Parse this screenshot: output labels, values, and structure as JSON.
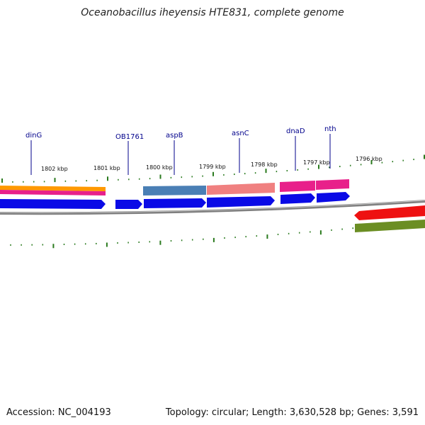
{
  "title": "Oceanobacillus iheyensis HTE831, complete genome",
  "footer": {
    "accession": "Accession: NC_004193",
    "summary": "Topology: circular; Length: 3,630,528 bp; Genes: 3,591"
  },
  "colors": {
    "ticks": "#2a7a1e",
    "backbone": "#808080",
    "gene_label": "#00008b",
    "cds_blue": "#0a0ae6",
    "steel_blue": "#4a7fb5",
    "salmon": "#f08080",
    "magenta": "#e8208a",
    "orange": "#ff9900",
    "red": "#ee1111",
    "olive": "#6b8e23"
  },
  "scale_labels": [
    "1802 kbp",
    "1801 kbp",
    "1800 kbp",
    "1799 kbp",
    "1798 kbp",
    "1797 kbp",
    "1796 kbp"
  ],
  "gene_labels": [
    "dinG",
    "OB1761",
    "aspB",
    "asnC",
    "dnaD",
    "nth"
  ]
}
